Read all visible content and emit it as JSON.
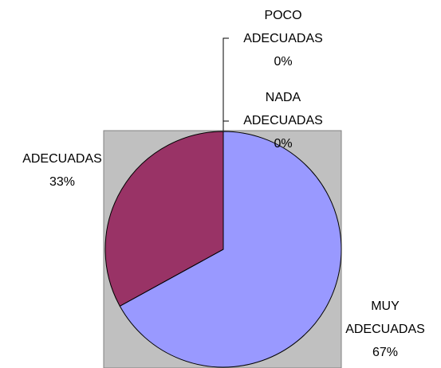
{
  "chart_data": {
    "type": "pie",
    "categories": [
      "MUY ADECUADAS",
      "ADECUADAS",
      "NADA ADECUADAS",
      "POCO ADECUADAS"
    ],
    "values": [
      67,
      33,
      0,
      0
    ],
    "value_labels": [
      "67%",
      "33%",
      "0%",
      "0%"
    ],
    "colors": [
      "#9999ff",
      "#993366",
      "#ffffcc",
      "#ccffff"
    ]
  }
}
